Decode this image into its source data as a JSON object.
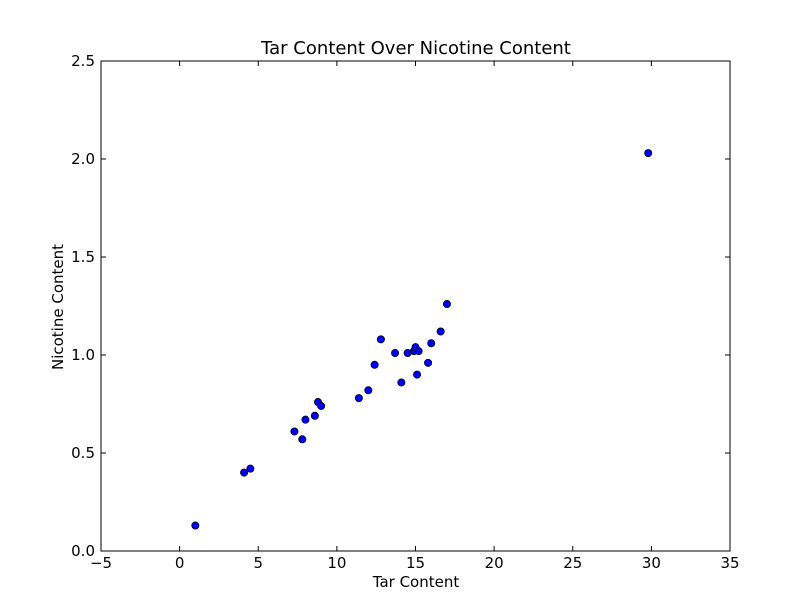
{
  "chart_data": {
    "type": "scatter",
    "title": "Tar Content Over Nicotine Content",
    "xlabel": "Tar Content",
    "ylabel": "Nicotine Content",
    "xlim": [
      -5,
      35
    ],
    "ylim": [
      0.0,
      2.5
    ],
    "xticks": [
      -5,
      0,
      5,
      10,
      15,
      20,
      25,
      30,
      35
    ],
    "xtick_labels": [
      "−5",
      "0",
      "5",
      "10",
      "15",
      "20",
      "25",
      "30",
      "35"
    ],
    "yticks": [
      0.0,
      0.5,
      1.0,
      1.5,
      2.0,
      2.5
    ],
    "ytick_labels": [
      "0.0",
      "0.5",
      "1.0",
      "1.5",
      "2.0",
      "2.5"
    ],
    "grid": false,
    "marker_color": "#0000ff",
    "marker_edge_color": "#000000",
    "points": [
      {
        "x": 1.0,
        "y": 0.13
      },
      {
        "x": 4.1,
        "y": 0.4
      },
      {
        "x": 4.5,
        "y": 0.42
      },
      {
        "x": 7.3,
        "y": 0.61
      },
      {
        "x": 7.8,
        "y": 0.57
      },
      {
        "x": 8.0,
        "y": 0.67
      },
      {
        "x": 8.6,
        "y": 0.69
      },
      {
        "x": 8.8,
        "y": 0.76
      },
      {
        "x": 9.0,
        "y": 0.74
      },
      {
        "x": 11.4,
        "y": 0.78
      },
      {
        "x": 12.0,
        "y": 0.82
      },
      {
        "x": 12.4,
        "y": 0.95
      },
      {
        "x": 12.8,
        "y": 1.08
      },
      {
        "x": 13.7,
        "y": 1.01
      },
      {
        "x": 14.1,
        "y": 0.86
      },
      {
        "x": 14.5,
        "y": 1.01
      },
      {
        "x": 14.9,
        "y": 1.02
      },
      {
        "x": 15.0,
        "y": 1.04
      },
      {
        "x": 15.1,
        "y": 0.9
      },
      {
        "x": 15.2,
        "y": 1.02
      },
      {
        "x": 15.8,
        "y": 0.96
      },
      {
        "x": 16.0,
        "y": 1.06
      },
      {
        "x": 16.6,
        "y": 1.12
      },
      {
        "x": 17.0,
        "y": 1.26
      },
      {
        "x": 29.8,
        "y": 2.03
      }
    ]
  }
}
